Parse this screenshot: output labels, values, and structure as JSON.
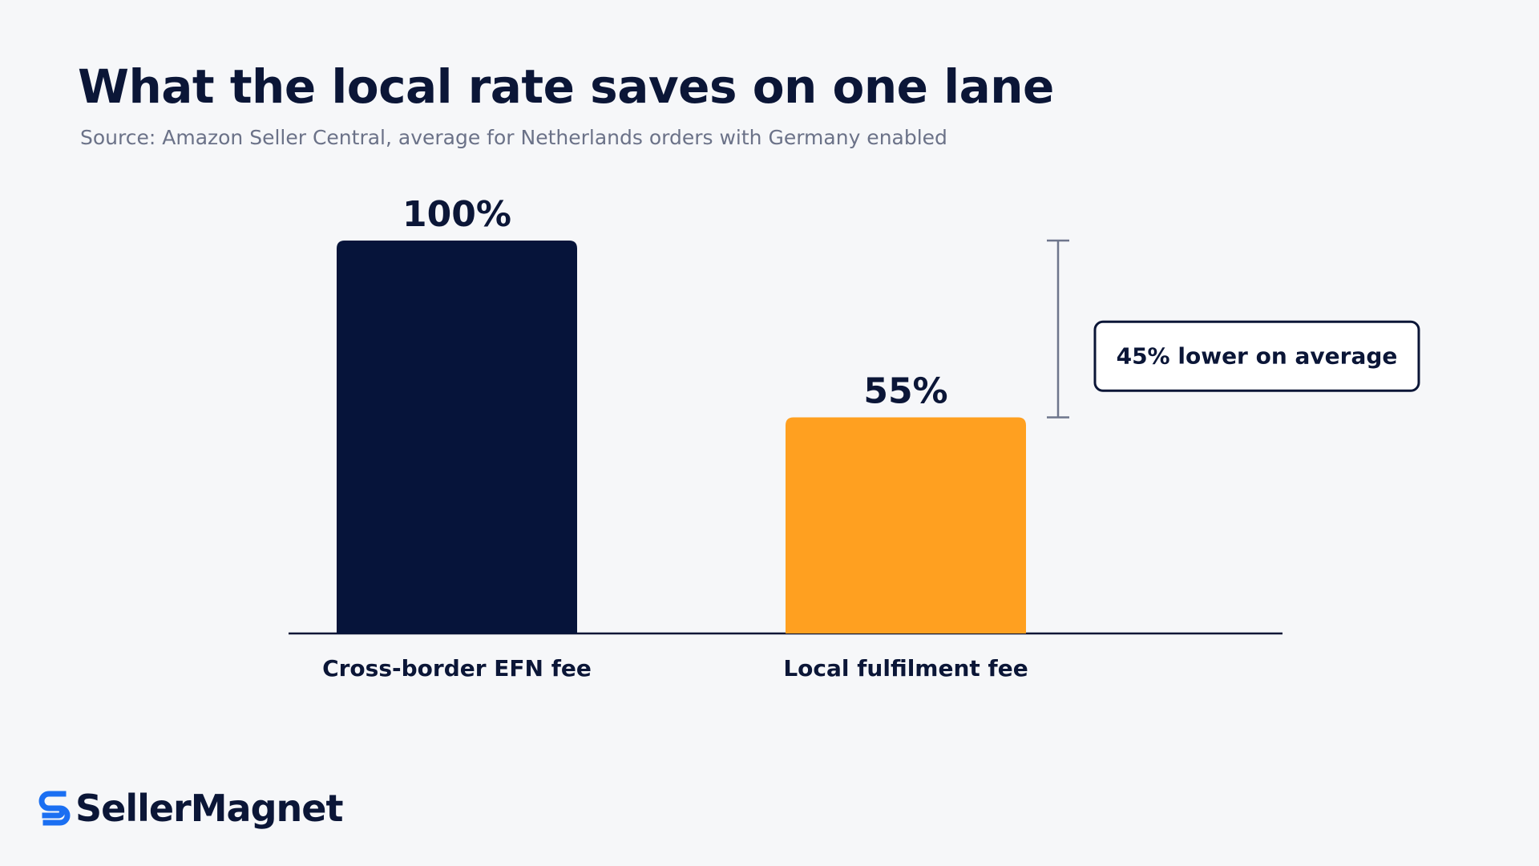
{
  "title": "What the local rate saves on one lane",
  "subtitle": "Source: Amazon Seller Central, average for Netherlands orders with Germany enabled",
  "chart_data": {
    "type": "bar",
    "categories": [
      "Cross-border EFN fee",
      "Local fulfilment fee"
    ],
    "values": [
      100,
      55
    ],
    "value_labels": [
      "100%",
      "55%"
    ],
    "bar_colors": [
      "#06143A",
      "#FFA020"
    ],
    "ylim": [
      0,
      100
    ],
    "grid": false,
    "legend": "none",
    "annotation": {
      "text": "45% lower on average",
      "from_value": 100,
      "to_value": 55
    }
  },
  "colors": {
    "text_dark": "#0B1637",
    "subtitle": "#6B7288",
    "bracket": "#6E768C",
    "brand_blue": "#1B6FF2"
  },
  "brand": {
    "name": "SellerMagnet",
    "icon": "sellermagnet-logo-icon"
  }
}
